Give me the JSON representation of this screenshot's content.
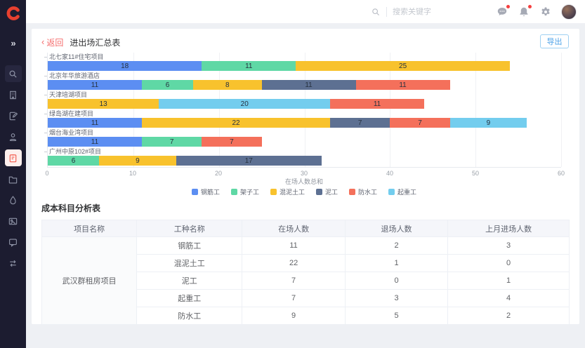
{
  "sidebar": {
    "logo": "C",
    "logo_color": "#E8402F",
    "icons": [
      "double-chevron-right-icon",
      "search-icon",
      "building-icon",
      "document-edit-icon",
      "user-icon",
      "clipboard-report-icon",
      "folder-icon",
      "water-drop-icon",
      "image-card-icon",
      "message-icon",
      "transfer-icon"
    ],
    "active_icon": "clipboard-report-icon",
    "active_color": "#F2594B"
  },
  "header": {
    "search_placeholder": "搜索关键字",
    "icons": [
      "chat-dots-icon",
      "bell-icon",
      "gear-icon"
    ],
    "notification_dot_color": "#F53F3F"
  },
  "page": {
    "back_arrow": "‹",
    "back": "返回",
    "title": "进出场汇总表",
    "export": "导出"
  },
  "chart_data": {
    "type": "bar",
    "orientation": "horizontal-stacked",
    "xlabel": "在场人数总和",
    "xlim": [
      0,
      60
    ],
    "xticks": [
      0,
      10,
      20,
      30,
      40,
      50,
      60
    ],
    "grid": true,
    "legend_position": "bottom",
    "legend": [
      {
        "name": "钢筋工",
        "color": "#5C8EF2"
      },
      {
        "name": "架子工",
        "color": "#5FD8A5"
      },
      {
        "name": "混泥土工",
        "color": "#F8C22D"
      },
      {
        "name": "泥工",
        "color": "#5D7092"
      },
      {
        "name": "防水工",
        "color": "#F4705B"
      },
      {
        "name": "起重工",
        "color": "#73CDEE"
      }
    ],
    "categories": [
      {
        "name": "北七家11#住宅项目",
        "segments": [
          {
            "series": "钢筋工",
            "value": 18
          },
          {
            "series": "架子工",
            "value": 11
          },
          {
            "series": "混泥土工",
            "value": 25
          }
        ]
      },
      {
        "name": "北京年华旅游酒店",
        "segments": [
          {
            "series": "钢筋工",
            "value": 11
          },
          {
            "series": "架子工",
            "value": 6
          },
          {
            "series": "混泥土工",
            "value": 8
          },
          {
            "series": "泥工",
            "value": 11
          },
          {
            "series": "防水工",
            "value": 11
          }
        ]
      },
      {
        "name": "天津培湖项目",
        "segments": [
          {
            "series": "混泥土工",
            "value": 13
          },
          {
            "series": "起重工",
            "value": 20
          },
          {
            "series": "防水工",
            "value": 11
          }
        ]
      },
      {
        "name": "绿岛湖在建项目",
        "segments": [
          {
            "series": "钢筋工",
            "value": 11
          },
          {
            "series": "混泥土工",
            "value": 22
          },
          {
            "series": "泥工",
            "value": 7
          },
          {
            "series": "防水工",
            "value": 7
          },
          {
            "series": "起重工",
            "value": 9
          }
        ]
      },
      {
        "name": "烟台海业湾项目",
        "segments": [
          {
            "series": "钢筋工",
            "value": 11
          },
          {
            "series": "架子工",
            "value": 7
          },
          {
            "series": "防水工",
            "value": 7
          }
        ]
      },
      {
        "name": "广州中原102#项目",
        "segments": [
          {
            "series": "架子工",
            "value": 6
          },
          {
            "series": "混泥土工",
            "value": 9
          },
          {
            "series": "泥工",
            "value": 17
          }
        ]
      }
    ]
  },
  "table": {
    "title": "成本科目分析表",
    "headers": [
      "项目名称",
      "工种名称",
      "在场人数",
      "退场人数",
      "上月进场人数"
    ],
    "project_name": "武汉群租房项目",
    "rows": [
      {
        "worker": "钢筋工",
        "on_site": "11",
        "exited": "2",
        "last_month": "3"
      },
      {
        "worker": "混泥土工",
        "on_site": "22",
        "exited": "1",
        "last_month": "0"
      },
      {
        "worker": "泥工",
        "on_site": "7",
        "exited": "0",
        "last_month": "1"
      },
      {
        "worker": "起重工",
        "on_site": "7",
        "exited": "3",
        "last_month": "4"
      },
      {
        "worker": "防水工",
        "on_site": "9",
        "exited": "5",
        "last_month": "2"
      }
    ]
  }
}
